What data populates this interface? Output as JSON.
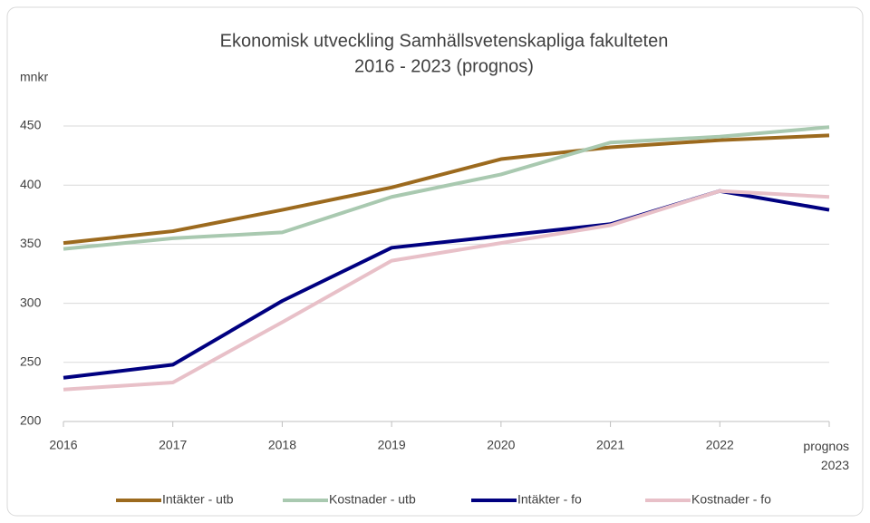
{
  "chart_data": {
    "type": "line",
    "title": "Ekonomisk utveckling Samhällsvetenskapliga fakulteten",
    "subtitle": "2016 - 2023 (prognos)",
    "y_label": "mnkr",
    "categories": [
      "2016",
      "2017",
      "2018",
      "2019",
      "2020",
      "2021",
      "2022",
      "prognos 2023"
    ],
    "series": [
      {
        "name": "Intäkter - utb",
        "color": "#9c6a1e",
        "values": [
          351,
          361,
          379,
          398,
          422,
          432,
          438,
          442
        ]
      },
      {
        "name": "Kostnader - utb",
        "color": "#a9c9b0",
        "values": [
          346,
          355,
          360,
          390,
          409,
          436,
          441,
          449
        ]
      },
      {
        "name": "Intäkter - fo",
        "color": "#000080",
        "values": [
          237,
          248,
          302,
          347,
          357,
          367,
          395,
          379
        ]
      },
      {
        "name": "Kostnader - fo",
        "color": "#e8c0c8",
        "values": [
          227,
          233,
          284,
          336,
          351,
          366,
          395,
          390
        ]
      }
    ],
    "ylim": [
      200,
      450
    ],
    "yticks": [
      200,
      250,
      300,
      350,
      400,
      450
    ],
    "grid": true,
    "legend": "bottom"
  }
}
